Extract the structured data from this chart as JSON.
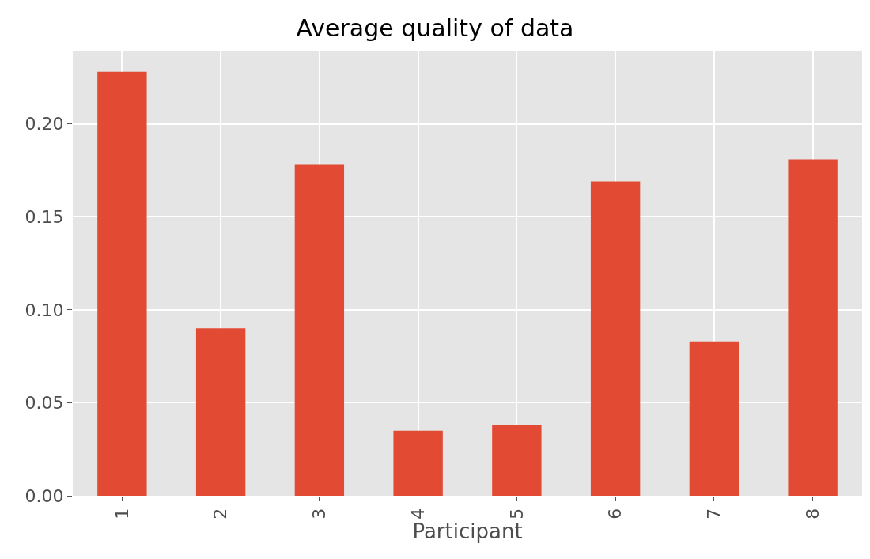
{
  "chart_data": {
    "type": "bar",
    "title": "Average quality of data",
    "xlabel": "Participant",
    "categories": [
      "1",
      "2",
      "3",
      "4",
      "5",
      "6",
      "7",
      "8"
    ],
    "values": [
      0.228,
      0.09,
      0.178,
      0.035,
      0.038,
      0.169,
      0.083,
      0.181
    ],
    "color": "#e24a33",
    "ylim": [
      0,
      0.239
    ],
    "yticks": [
      {
        "value": 0,
        "label": "0.00"
      },
      {
        "value": 0.05,
        "label": "0.05"
      },
      {
        "value": 0.1,
        "label": "0.10"
      },
      {
        "value": 0.15,
        "label": "0.15"
      },
      {
        "value": 0.2,
        "label": "0.20"
      }
    ],
    "grid": true,
    "legend": false
  }
}
